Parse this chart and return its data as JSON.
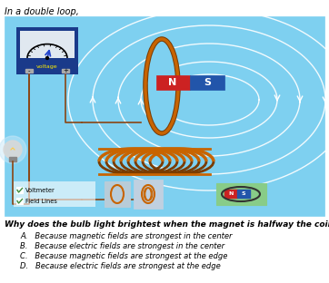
{
  "title_text": "In a double loop,",
  "question_text": "Why does the bulb light brightest when the magnet is halfway the coil?",
  "options": [
    "A.   Because magnetic fields are strongest in the center",
    "B.   Because electric fields are strongest in the center",
    "C.   Because magnetic fields are strongest at the edge",
    "D.   Because electric fields are strongest at the edge"
  ],
  "bg_color": "#7ed0f0",
  "voltmeter_bg": "#1a3a8a",
  "magnet_N_color": "#cc2222",
  "magnet_S_color": "#2255aa",
  "coil_color": "#c86400",
  "coil_dark": "#7a3c00",
  "field_line_color": "#ffffff",
  "check_color": "#3a8a3a",
  "legend_items": [
    "Voltmeter",
    "Field Lines"
  ],
  "N_label": "N",
  "S_label": "S",
  "voltage_label": "voltage",
  "figsize": [
    3.62,
    3.12
  ],
  "dpi": 100
}
